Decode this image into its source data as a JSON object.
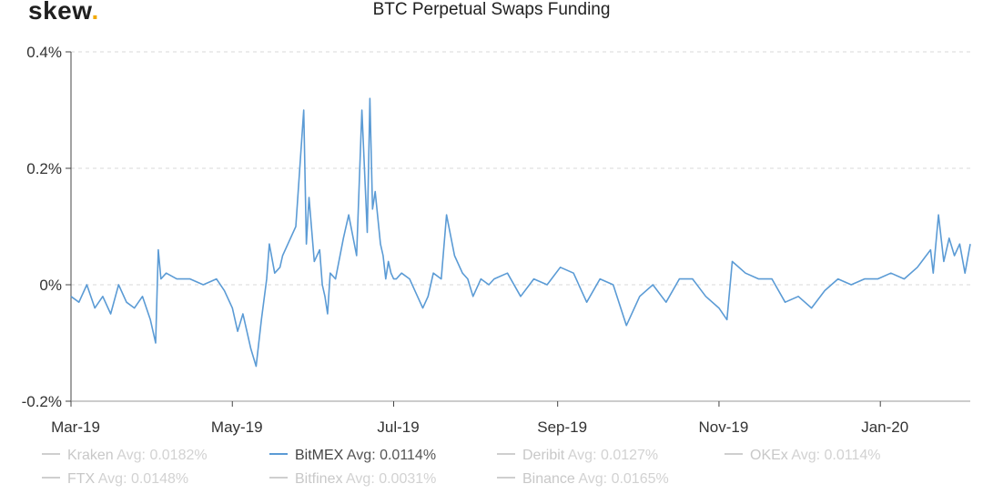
{
  "logo": {
    "text": "skew",
    "dot": "."
  },
  "chart_data": {
    "type": "line",
    "title": "BTC Perpetual Swaps Funding",
    "xlabel": "",
    "ylabel": "",
    "x_range": [
      0,
      340
    ],
    "x_unit": "days since 2019-03-01",
    "ylim": [
      -0.2,
      0.4
    ],
    "y_ticks": [
      {
        "value": -0.2,
        "label": "-0.2%"
      },
      {
        "value": 0,
        "label": "0%"
      },
      {
        "value": 0.2,
        "label": "0.2%"
      },
      {
        "value": 0.4,
        "label": "0.4%"
      }
    ],
    "x_ticks": [
      {
        "value": 0,
        "label": "Mar-19"
      },
      {
        "value": 61,
        "label": "May-19"
      },
      {
        "value": 122,
        "label": "Jul-19"
      },
      {
        "value": 184,
        "label": "Sep-19"
      },
      {
        "value": 245,
        "label": "Nov-19"
      },
      {
        "value": 306,
        "label": "Jan-20"
      }
    ],
    "grid": "horizontal-dashed",
    "series": [
      {
        "name": "BitMEX",
        "color": "#5b9bd5",
        "x": [
          0,
          3,
          6,
          9,
          12,
          15,
          18,
          21,
          24,
          27,
          30,
          32,
          33,
          34,
          36,
          40,
          45,
          50,
          55,
          58,
          61,
          63,
          65,
          67,
          68,
          70,
          72,
          74,
          75,
          77,
          79,
          80,
          82,
          85,
          88,
          89,
          90,
          92,
          94,
          95,
          96,
          97,
          98,
          100,
          103,
          105,
          108,
          110,
          112,
          113,
          114,
          115,
          117,
          118,
          119,
          120,
          121,
          122,
          123,
          125,
          128,
          130,
          133,
          135,
          137,
          140,
          142,
          145,
          148,
          150,
          152,
          155,
          158,
          160,
          165,
          170,
          175,
          180,
          185,
          190,
          195,
          200,
          205,
          210,
          215,
          220,
          225,
          230,
          235,
          240,
          245,
          248,
          250,
          255,
          260,
          265,
          270,
          275,
          280,
          285,
          290,
          295,
          300,
          305,
          310,
          315,
          320,
          325,
          326,
          328,
          330,
          332,
          334,
          336,
          338,
          340
        ],
        "values": [
          -0.02,
          -0.03,
          0.0,
          -0.04,
          -0.02,
          -0.05,
          0.0,
          -0.03,
          -0.04,
          -0.02,
          -0.06,
          -0.1,
          0.06,
          0.01,
          0.02,
          0.01,
          0.01,
          0.0,
          0.01,
          -0.01,
          -0.04,
          -0.08,
          -0.05,
          -0.09,
          -0.11,
          -0.14,
          -0.06,
          0.01,
          0.07,
          0.02,
          0.03,
          0.05,
          0.07,
          0.1,
          0.3,
          0.07,
          0.15,
          0.04,
          0.06,
          0.0,
          -0.02,
          -0.05,
          0.02,
          0.01,
          0.08,
          0.12,
          0.05,
          0.3,
          0.09,
          0.32,
          0.13,
          0.16,
          0.07,
          0.05,
          0.01,
          0.04,
          0.02,
          0.01,
          0.01,
          0.02,
          0.01,
          -0.01,
          -0.04,
          -0.02,
          0.02,
          0.01,
          0.12,
          0.05,
          0.02,
          0.01,
          -0.02,
          0.01,
          0.0,
          0.01,
          0.02,
          -0.02,
          0.01,
          0.0,
          0.03,
          0.02,
          -0.03,
          0.01,
          0.0,
          -0.07,
          -0.02,
          0.0,
          -0.03,
          0.01,
          0.01,
          -0.02,
          -0.04,
          -0.06,
          0.04,
          0.02,
          0.01,
          0.01,
          -0.03,
          -0.02,
          -0.04,
          -0.01,
          0.01,
          0.0,
          0.01,
          0.01,
          0.02,
          0.01,
          0.03,
          0.06,
          0.02,
          0.12,
          0.04,
          0.08,
          0.05,
          0.07,
          0.02,
          0.07
        ]
      }
    ]
  },
  "legend": [
    {
      "name": "Kraken",
      "avg": "Avg: 0.0182%",
      "active": false
    },
    {
      "name": "BitMEX",
      "avg": "Avg: 0.0114%",
      "active": true
    },
    {
      "name": "Deribit",
      "avg": "Avg: 0.0127%",
      "active": false
    },
    {
      "name": "OKEx",
      "avg": "Avg: 0.0114%",
      "active": false
    },
    {
      "name": "FTX",
      "avg": "Avg: 0.0148%",
      "active": false
    },
    {
      "name": "Bitfinex",
      "avg": "Avg: 0.0031%",
      "active": false
    },
    {
      "name": "Binance",
      "avg": "Avg: 0.0165%",
      "active": false
    }
  ]
}
